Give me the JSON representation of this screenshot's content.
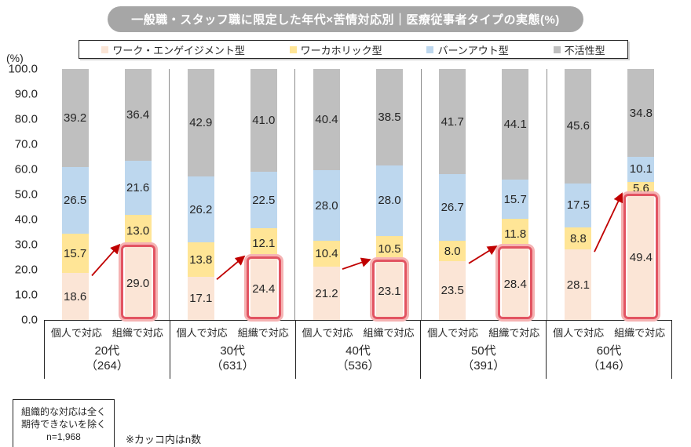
{
  "title": "一般職・スタッフ職に限定した年代×苦情対応別｜医療従事者タイプの実態(%)",
  "y_axis": {
    "unit_label": "(%)",
    "ticks": [
      "100.0",
      "90.0",
      "80.0",
      "70.0",
      "60.0",
      "50.0",
      "40.0",
      "30.0",
      "20.0",
      "10.0",
      "0.0"
    ]
  },
  "legend": [
    "ワーク・エンゲイジメント型",
    "ワーカホリック型",
    "バーンアウト型",
    "不活性型"
  ],
  "colors": {
    "segments": [
      "#fbe5d6",
      "#ffe596",
      "#bdd7ee",
      "#bfbfbf"
    ],
    "title_bg": "#a6a6a6",
    "arrow": "#c00000",
    "highlight_border": "#e25462",
    "highlight_glow": "#f5b3b3"
  },
  "chart_data": {
    "type": "bar",
    "stacked": true,
    "unit": "%",
    "ylim": [
      0,
      100
    ],
    "grid": false,
    "legend_position": "top",
    "series_names": [
      "ワーク・エンゲイジメント型",
      "ワーカホリック型",
      "バーンアウト型",
      "不活性型"
    ],
    "bar_categories": [
      "個人で対応",
      "組織で対応"
    ],
    "arrow_between_bars": true,
    "groups": [
      {
        "label": "20代",
        "n_label": "（264）",
        "bars": [
          {
            "category": "個人で対応",
            "values": [
              18.6,
              15.7,
              26.5,
              39.2
            ],
            "highlighted": false
          },
          {
            "category": "組織で対応",
            "values": [
              29.0,
              13.0,
              21.6,
              36.4
            ],
            "highlighted": true
          }
        ]
      },
      {
        "label": "30代",
        "n_label": "（631）",
        "bars": [
          {
            "category": "個人で対応",
            "values": [
              17.1,
              13.8,
              26.2,
              42.9
            ],
            "highlighted": false
          },
          {
            "category": "組織で対応",
            "values": [
              24.4,
              12.1,
              22.5,
              41.0
            ],
            "highlighted": true
          }
        ]
      },
      {
        "label": "40代",
        "n_label": "（536）",
        "bars": [
          {
            "category": "個人で対応",
            "values": [
              21.2,
              10.4,
              28.0,
              40.4
            ],
            "highlighted": false
          },
          {
            "category": "組織で対応",
            "values": [
              23.1,
              10.5,
              28.0,
              38.5
            ],
            "highlighted": true
          }
        ]
      },
      {
        "label": "50代",
        "n_label": "（391）",
        "bars": [
          {
            "category": "個人で対応",
            "values": [
              23.5,
              8.0,
              26.7,
              41.7
            ],
            "highlighted": false
          },
          {
            "category": "組織で対応",
            "values": [
              28.4,
              11.8,
              15.7,
              44.1
            ],
            "highlighted": true
          }
        ]
      },
      {
        "label": "60代",
        "n_label": "（146）",
        "bars": [
          {
            "category": "個人で対応",
            "values": [
              28.1,
              8.8,
              17.5,
              45.6
            ],
            "highlighted": false
          },
          {
            "category": "組織で対応",
            "values": [
              49.4,
              5.6,
              10.1,
              34.8
            ],
            "highlighted": true
          }
        ]
      }
    ]
  },
  "footnote_box": {
    "lines": [
      "組織的な対応は全く",
      "期待できないを除く",
      "n=1,968"
    ]
  },
  "note": "※カッコ内はn数"
}
